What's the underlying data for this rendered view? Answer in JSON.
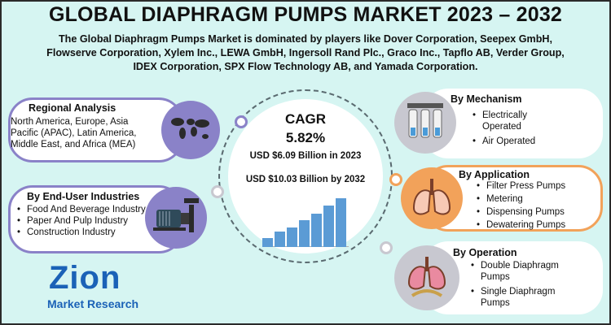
{
  "title": "GLOBAL DIAPHRAGM PUMPS MARKET 2023 – 2032",
  "subtitle_lines": [
    "The Global Diaphragm Pumps Market is dominated by players like Dover Corporation, Seepex GmbH,",
    "Flowserve Corporation, Xylem Inc., LEWA GmbH, Ingersoll Rand Plc., Graco Inc., Tapflo AB, Verder Group,",
    "IDEX Corporation, SPX Flow Technology AB, and Yamada Corporation."
  ],
  "regional": {
    "heading": "Regional Analysis",
    "lines": [
      "North America, Europe, Asia",
      "Pacific (APAC), Latin America,",
      "Middle East, and Africa (MEA)"
    ],
    "icon": "world-map-icon"
  },
  "end_user": {
    "heading": "By End-User Industries",
    "items": [
      "Food And Beverage Industry",
      "Paper And Pulp Industry",
      "Construction Industry"
    ],
    "icon": "pump-motor-icon"
  },
  "center": {
    "cagr_label": "CAGR",
    "cagr_value": "5.82%",
    "value_2023": "USD $6.09 Billion in 2023",
    "value_2032": "USD $10.03 Billion by 2032"
  },
  "chart_data": {
    "type": "bar",
    "categories": [
      "",
      "",
      "",
      "",
      "",
      "",
      ""
    ],
    "values": [
      1.2,
      2.0,
      2.6,
      3.5,
      4.4,
      5.4,
      6.4
    ],
    "colors": [
      "#5b9bd5",
      "#5b9bd5",
      "#5b9bd5",
      "#5b9bd5",
      "#5b9bd5",
      "#5b9bd5",
      "#5b9bd5"
    ]
  },
  "mechanism": {
    "heading": "By Mechanism",
    "items": [
      "Electrically Operated",
      "Air Operated"
    ],
    "icon": "filter-system-icon"
  },
  "application": {
    "heading": "By Application",
    "items": [
      "Filter Press Pumps",
      "Metering",
      "Dispensing Pumps",
      "Dewatering Pumps"
    ],
    "icon": "lungs-icon"
  },
  "operation": {
    "heading": "By Operation",
    "items": [
      "Double Diaphragm Pumps",
      "Single Diaphragm Pumps"
    ],
    "icon": "lungs-diaphragm-icon"
  },
  "logo": {
    "word": "Zion",
    "tagline": "Market Research"
  },
  "colors": {
    "background": "#d6f5f2",
    "purple": "#8a82c8",
    "orange": "#f2a25a",
    "grey_dot": "#c8c8d0",
    "bar_blue": "#5b9bd5",
    "logo_blue": "#1b62b7"
  }
}
